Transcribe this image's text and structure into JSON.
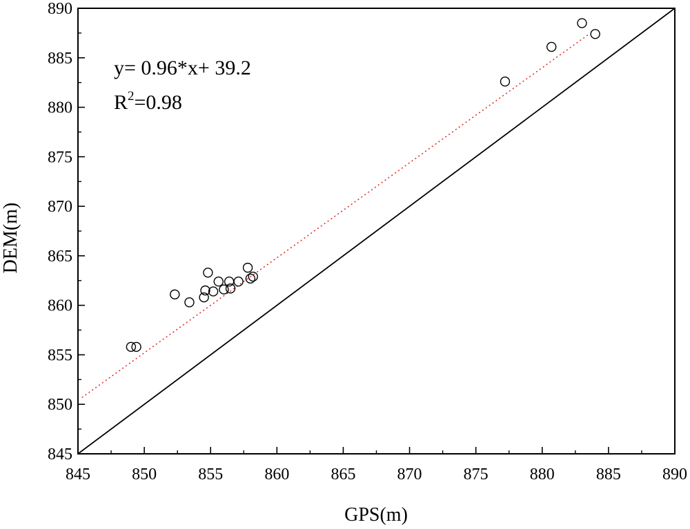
{
  "chart_data": {
    "type": "scatter",
    "title": "",
    "xlabel": "GPS(m)",
    "ylabel": "DEM(m)",
    "xlim": [
      845,
      890
    ],
    "ylim": [
      845,
      890
    ],
    "xticks": [
      845,
      850,
      855,
      860,
      865,
      870,
      875,
      880,
      885,
      890
    ],
    "yticks": [
      845,
      850,
      855,
      860,
      865,
      870,
      875,
      880,
      885,
      890
    ],
    "x_tick_labels": [
      "845",
      "850",
      "855",
      "860",
      "865",
      "870",
      "875",
      "880",
      "885",
      "890"
    ],
    "y_tick_labels": [
      "845",
      "850",
      "855",
      "860",
      "865",
      "870",
      "875",
      "880",
      "885",
      "890"
    ],
    "grid": false,
    "points": {
      "x": [
        849.0,
        849.4,
        852.3,
        853.4,
        854.5,
        854.6,
        854.8,
        855.2,
        855.6,
        856.0,
        856.4,
        856.5,
        857.1,
        857.8,
        858.0,
        858.2,
        877.2,
        880.7,
        883.0,
        884.0
      ],
      "y": [
        855.8,
        855.8,
        861.1,
        860.3,
        860.8,
        861.5,
        863.3,
        861.4,
        862.4,
        861.6,
        862.4,
        861.7,
        862.4,
        863.8,
        862.7,
        862.9,
        882.6,
        886.1,
        888.5,
        887.4
      ]
    },
    "fit_line": {
      "slope": 0.96,
      "intercept": 39.2,
      "x_range": [
        845.3,
        883.6
      ],
      "color": "#e02020",
      "style": "dotted"
    },
    "reference_line": {
      "label": "",
      "from": [
        845,
        845
      ],
      "to": [
        890,
        890
      ],
      "color": "#000000"
    },
    "annotations": {
      "equation": "y= 0.96*x+ 39.2",
      "r2_prefix": "R",
      "r2_superscript": "2",
      "r2_value": "=0.98"
    }
  }
}
